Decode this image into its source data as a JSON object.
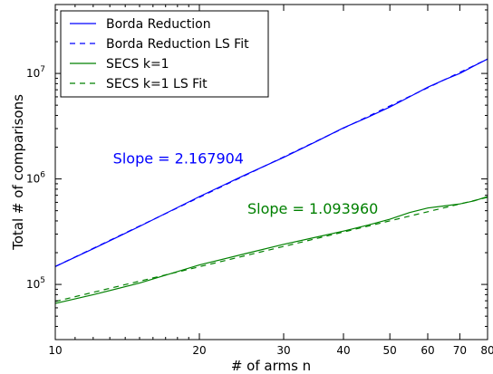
{
  "colors": {
    "blue": "#0000ff",
    "green": "#008000",
    "axis": "#000000"
  },
  "chart_data": {
    "type": "line",
    "xscale": "log",
    "yscale": "log",
    "xlabel": "# of arms n",
    "ylabel": "Total # of comparisons",
    "xlim": [
      10,
      80
    ],
    "ylim": [
      30000,
      45000000
    ],
    "xticks": [
      {
        "value": 10,
        "label": "10"
      },
      {
        "value": 20,
        "label": "20"
      },
      {
        "value": 30,
        "label": "30"
      },
      {
        "value": 40,
        "label": "40"
      },
      {
        "value": 50,
        "label": "50"
      },
      {
        "value": 60,
        "label": "60"
      },
      {
        "value": 70,
        "label": "70"
      },
      {
        "value": 80,
        "label": "80"
      }
    ],
    "yticks": [
      {
        "value": 100000,
        "base": "10",
        "exp": "5"
      },
      {
        "value": 1000000,
        "base": "10",
        "exp": "6"
      },
      {
        "value": 10000000,
        "base": "10",
        "exp": "7"
      }
    ],
    "legend_position": "top-left",
    "series": [
      {
        "name": "Borda Reduction",
        "color": "#0000ff",
        "style": "solid",
        "x": [
          10,
          12,
          15,
          20,
          25,
          30,
          35,
          40,
          45,
          50,
          55,
          60,
          65,
          70,
          75,
          80
        ],
        "y": [
          148000,
          218000,
          355000,
          680000,
          1100000,
          1600000,
          2250000,
          3050000,
          3850000,
          4800000,
          6000000,
          7400000,
          8700000,
          10000000,
          11800000,
          13700000
        ]
      },
      {
        "name": "Borda Reduction LS Fit",
        "color": "#0000ff",
        "style": "dashed",
        "x": [
          10,
          80
        ],
        "y": [
          148000,
          13700000
        ]
      },
      {
        "name": "SECS k=1",
        "color": "#008000",
        "style": "solid",
        "x": [
          10,
          12,
          15,
          20,
          25,
          30,
          35,
          40,
          45,
          50,
          55,
          60,
          65,
          70,
          75,
          80
        ],
        "y": [
          66000,
          80000,
          103000,
          153000,
          196000,
          240000,
          280000,
          320000,
          365000,
          415000,
          480000,
          530000,
          555000,
          580000,
          620000,
          680000
        ]
      },
      {
        "name": "SECS k=1 LS Fit",
        "color": "#008000",
        "style": "dashed",
        "x": [
          10,
          80
        ],
        "y": [
          69000,
          670000
        ]
      }
    ],
    "annotations": [
      {
        "text": "Slope = 2.167904",
        "color": "#0000ff",
        "x": 13.2,
        "y": 1400000
      },
      {
        "text": "Slope = 1.093960",
        "color": "#008000",
        "x": 25.2,
        "y": 470000
      }
    ]
  }
}
